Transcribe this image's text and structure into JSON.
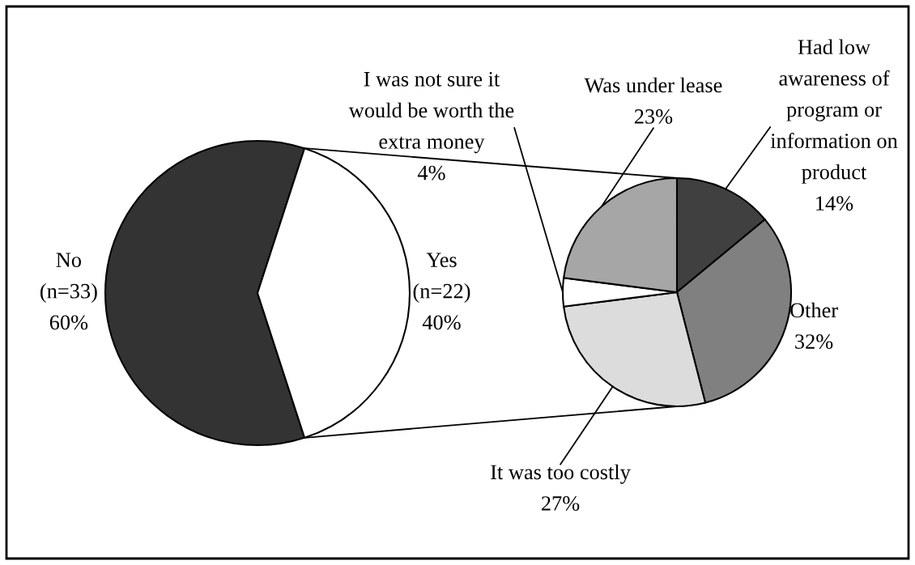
{
  "chart_data": [
    {
      "type": "pie",
      "categories": [
        "No\n(n=33)",
        "Yes\n(n=22)"
      ],
      "values": [
        60,
        40
      ],
      "colors": [
        "#333333",
        "#ffffff"
      ],
      "value_labels": [
        "60%",
        "40%"
      ]
    },
    {
      "type": "pie",
      "categories": [
        "Had low\nawareness of\nprogram or\ninformation on\nproduct",
        "Other",
        "It was too costly",
        "I was not sure it\nwould be worth the\nextra money",
        "Was under lease"
      ],
      "values": [
        14,
        32,
        27,
        4,
        23
      ],
      "colors": [
        "#404040",
        "#808080",
        "#dcdcdc",
        "#ffffff",
        "#a6a6a6"
      ],
      "value_labels": [
        "14%",
        "32%",
        "27%",
        "4%",
        "23%"
      ]
    }
  ]
}
